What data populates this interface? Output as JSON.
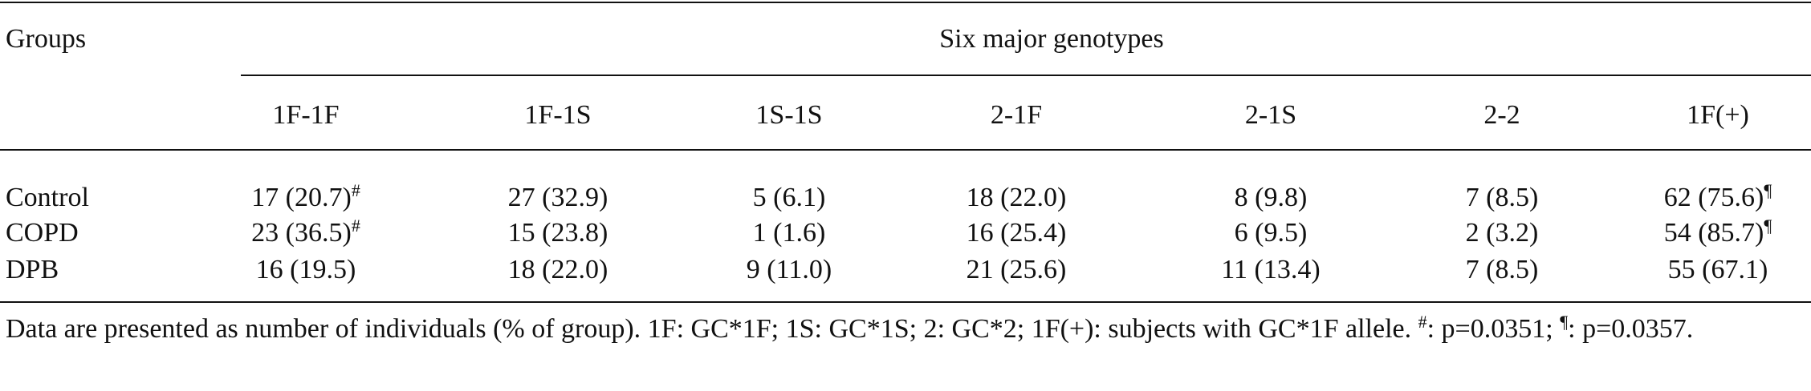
{
  "table": {
    "group_header": "Groups",
    "span_header": "Six major genotypes",
    "columns": [
      "1F-1F",
      "1F-1S",
      "1S-1S",
      "2-1F",
      "2-1S",
      "2-2",
      "1F(+)"
    ],
    "rows": [
      {
        "group": "Control",
        "cells": [
          {
            "text": "17 (20.7)",
            "sup": "#"
          },
          {
            "text": "27 (32.9)"
          },
          {
            "text": "5 (6.1)"
          },
          {
            "text": "18 (22.0)"
          },
          {
            "text": "8 (9.8)"
          },
          {
            "text": "7 (8.5)"
          },
          {
            "text": "62 (75.6)",
            "sup": "¶"
          }
        ]
      },
      {
        "group": "COPD",
        "cells": [
          {
            "text": "23 (36.5)",
            "sup": "#"
          },
          {
            "text": "15 (23.8)"
          },
          {
            "text": "1 (1.6)"
          },
          {
            "text": "16 (25.4)"
          },
          {
            "text": "6 (9.5)"
          },
          {
            "text": "2 (3.2)"
          },
          {
            "text": "54 (85.7)",
            "sup": "¶"
          }
        ]
      },
      {
        "group": "DPB",
        "cells": [
          {
            "text": "16 (19.5)"
          },
          {
            "text": "18 (22.0)"
          },
          {
            "text": "9 (11.0)"
          },
          {
            "text": "21 (25.6)"
          },
          {
            "text": "11 (13.4)"
          },
          {
            "text": "7 (8.5)"
          },
          {
            "text": "55 (67.1)"
          }
        ]
      }
    ]
  },
  "footnote": {
    "text": "Data are presented as number of individuals (% of group). 1F: GC*1F; 1S: GC*1S; 2: GC*2; 1F(+): subjects with GC*1F allele.",
    "notes": [
      {
        "mark": "#",
        "text": ": p=0.0351;"
      },
      {
        "mark": "¶",
        "text": ": p=0.0357."
      }
    ]
  }
}
